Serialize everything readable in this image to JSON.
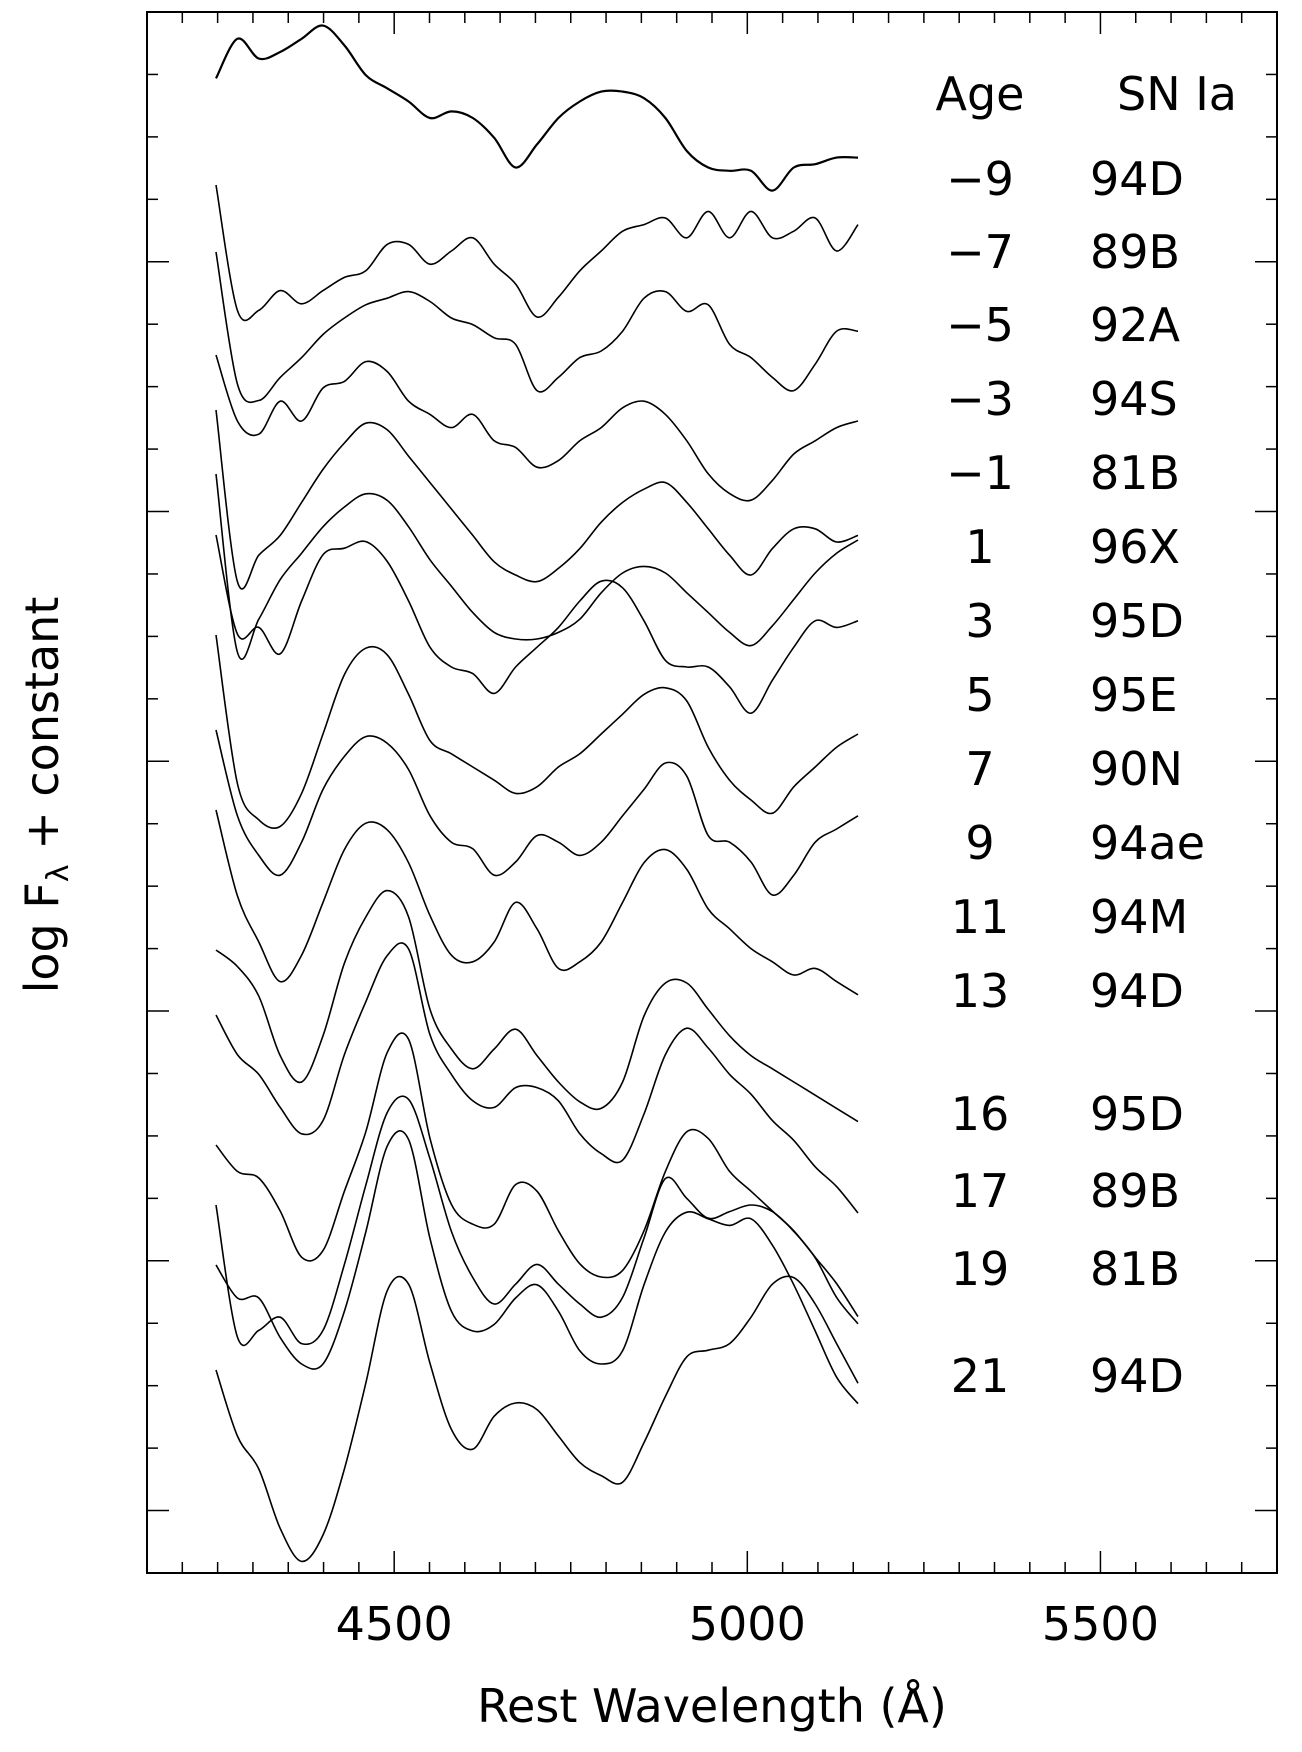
{
  "chart_data": {
    "type": "line",
    "xlabel": "Rest Wavelength  (Å)",
    "ylabel": "log F",
    "ylabel_subscript": "λ",
    "ylabel_suffix": " + constant",
    "xlim": [
      4150,
      5750
    ],
    "x_ticks": [
      4500,
      5000,
      5500
    ],
    "x_ticks_labels": [
      "4500",
      "5000",
      "5500"
    ],
    "x_minor_step": 50,
    "table_headers": {
      "age": "Age",
      "sn": "SN Ia"
    },
    "x_nodes": [
      4150,
      4200,
      4250,
      4300,
      4350,
      4400,
      4450,
      4500,
      4550,
      4600,
      4650,
      4700,
      4750,
      4800,
      4850,
      4900,
      4950,
      5000,
      5050,
      5100,
      5150,
      5200,
      5250,
      5300,
      5350,
      5400,
      5450,
      5500,
      5550,
      5600,
      5650
    ],
    "series": [
      {
        "age": "−9",
        "sn": "94D",
        "values": [
          0.02,
          0.14,
          0.08,
          0.1,
          0.14,
          0.18,
          0.12,
          0.03,
          -0.01,
          -0.05,
          -0.1,
          -0.08,
          -0.1,
          -0.16,
          -0.25,
          -0.18,
          -0.1,
          -0.05,
          -0.02,
          -0.02,
          -0.04,
          -0.1,
          -0.2,
          -0.25,
          -0.26,
          -0.26,
          -0.32,
          -0.25,
          -0.24,
          -0.22,
          -0.22
        ]
      },
      {
        "age": "−7",
        "sn": "89B",
        "values": [
          0.0,
          -0.38,
          -0.38,
          -0.32,
          -0.36,
          -0.32,
          -0.28,
          -0.26,
          -0.18,
          -0.18,
          -0.24,
          -0.2,
          -0.16,
          -0.24,
          -0.3,
          -0.4,
          -0.34,
          -0.26,
          -0.2,
          -0.14,
          -0.12,
          -0.1,
          -0.16,
          -0.08,
          -0.16,
          -0.08,
          -0.16,
          -0.14,
          -0.1,
          -0.2,
          -0.12
        ]
      },
      {
        "age": "−5",
        "sn": "92A",
        "values": [
          0.0,
          -0.4,
          -0.45,
          -0.38,
          -0.32,
          -0.25,
          -0.2,
          -0.16,
          -0.14,
          -0.12,
          -0.15,
          -0.2,
          -0.22,
          -0.26,
          -0.28,
          -0.42,
          -0.38,
          -0.32,
          -0.3,
          -0.24,
          -0.14,
          -0.12,
          -0.18,
          -0.16,
          -0.28,
          -0.32,
          -0.38,
          -0.42,
          -0.34,
          -0.24,
          -0.24
        ]
      },
      {
        "age": "−3",
        "sn": "94S",
        "values": [
          0.0,
          -0.2,
          -0.24,
          -0.14,
          -0.2,
          -0.1,
          -0.08,
          -0.02,
          -0.05,
          -0.14,
          -0.18,
          -0.22,
          -0.18,
          -0.26,
          -0.28,
          -0.34,
          -0.32,
          -0.26,
          -0.22,
          -0.16,
          -0.14,
          -0.18,
          -0.26,
          -0.36,
          -0.42,
          -0.44,
          -0.38,
          -0.3,
          -0.26,
          -0.22,
          -0.2
        ]
      },
      {
        "age": "−1",
        "sn": "81B",
        "values": [
          0.0,
          -0.52,
          -0.44,
          -0.38,
          -0.28,
          -0.18,
          -0.1,
          -0.04,
          -0.06,
          -0.14,
          -0.22,
          -0.3,
          -0.38,
          -0.46,
          -0.5,
          -0.52,
          -0.48,
          -0.42,
          -0.34,
          -0.28,
          -0.24,
          -0.22,
          -0.28,
          -0.36,
          -0.44,
          -0.5,
          -0.42,
          -0.36,
          -0.36,
          -0.4,
          -0.38
        ]
      },
      {
        "age": "1",
        "sn": "96X",
        "values": [
          0.0,
          -0.3,
          -0.28,
          -0.36,
          -0.2,
          -0.06,
          -0.04,
          -0.02,
          -0.08,
          -0.2,
          -0.34,
          -0.4,
          -0.42,
          -0.48,
          -0.4,
          -0.34,
          -0.28,
          -0.2,
          -0.14,
          -0.16,
          -0.26,
          -0.38,
          -0.4,
          -0.4,
          -0.46,
          -0.54,
          -0.44,
          -0.34,
          -0.26,
          -0.28,
          -0.26
        ]
      },
      {
        "age": "3",
        "sn": "95D",
        "values": [
          0.0,
          -0.54,
          -0.44,
          -0.32,
          -0.24,
          -0.16,
          -0.1,
          -0.06,
          -0.08,
          -0.16,
          -0.26,
          -0.34,
          -0.42,
          -0.48,
          -0.5,
          -0.5,
          -0.48,
          -0.44,
          -0.36,
          -0.3,
          -0.28,
          -0.3,
          -0.36,
          -0.42,
          -0.48,
          -0.52,
          -0.46,
          -0.38,
          -0.3,
          -0.24,
          -0.2
        ]
      },
      {
        "age": "5",
        "sn": "95E",
        "values": [
          0.0,
          -0.45,
          -0.56,
          -0.58,
          -0.48,
          -0.3,
          -0.12,
          -0.04,
          -0.06,
          -0.18,
          -0.32,
          -0.36,
          -0.4,
          -0.44,
          -0.48,
          -0.46,
          -0.4,
          -0.36,
          -0.3,
          -0.24,
          -0.18,
          -0.16,
          -0.2,
          -0.34,
          -0.44,
          -0.5,
          -0.54,
          -0.46,
          -0.4,
          -0.34,
          -0.3
        ]
      },
      {
        "age": "7",
        "sn": "90N",
        "values": [
          0.0,
          -0.26,
          -0.38,
          -0.44,
          -0.34,
          -0.18,
          -0.08,
          -0.02,
          -0.04,
          -0.12,
          -0.26,
          -0.34,
          -0.36,
          -0.44,
          -0.4,
          -0.32,
          -0.34,
          -0.38,
          -0.34,
          -0.26,
          -0.18,
          -0.1,
          -0.14,
          -0.32,
          -0.34,
          -0.4,
          -0.5,
          -0.44,
          -0.34,
          -0.3,
          -0.26
        ]
      },
      {
        "age": "9",
        "sn": "94ae",
        "values": [
          0.0,
          -0.26,
          -0.4,
          -0.52,
          -0.44,
          -0.28,
          -0.12,
          -0.04,
          -0.06,
          -0.16,
          -0.32,
          -0.44,
          -0.46,
          -0.4,
          -0.28,
          -0.36,
          -0.48,
          -0.46,
          -0.4,
          -0.28,
          -0.16,
          -0.12,
          -0.18,
          -0.3,
          -0.36,
          -0.42,
          -0.46,
          -0.5,
          -0.48,
          -0.52,
          -0.56
        ]
      },
      {
        "age": "11",
        "sn": "94M",
        "values": [
          0.0,
          -0.05,
          -0.14,
          -0.32,
          -0.4,
          -0.26,
          -0.04,
          0.1,
          0.18,
          0.1,
          -0.18,
          -0.3,
          -0.36,
          -0.3,
          -0.24,
          -0.32,
          -0.4,
          -0.46,
          -0.48,
          -0.4,
          -0.2,
          -0.1,
          -0.1,
          -0.18,
          -0.26,
          -0.32,
          -0.36,
          -0.4,
          -0.44,
          -0.48,
          -0.52
        ]
      },
      {
        "age": "13",
        "sn": "94D",
        "values": [
          0.0,
          -0.12,
          -0.18,
          -0.28,
          -0.36,
          -0.32,
          -0.12,
          0.04,
          0.18,
          0.2,
          -0.06,
          -0.18,
          -0.26,
          -0.28,
          -0.22,
          -0.22,
          -0.26,
          -0.36,
          -0.42,
          -0.44,
          -0.3,
          -0.12,
          -0.04,
          -0.1,
          -0.18,
          -0.24,
          -0.32,
          -0.38,
          -0.46,
          -0.52,
          -0.6
        ]
      },
      {
        "age": "16",
        "sn": "95D",
        "values": [
          0.0,
          -0.08,
          -0.1,
          -0.2,
          -0.34,
          -0.32,
          -0.14,
          0.04,
          0.28,
          0.32,
          0.02,
          -0.18,
          -0.24,
          -0.24,
          -0.12,
          -0.14,
          -0.26,
          -0.36,
          -0.4,
          -0.38,
          -0.26,
          -0.08,
          0.04,
          0.02,
          -0.08,
          -0.14,
          -0.2,
          -0.26,
          -0.34,
          -0.42,
          -0.52
        ]
      },
      {
        "age": "17",
        "sn": "89B",
        "values": [
          0.0,
          -0.4,
          -0.38,
          -0.34,
          -0.42,
          -0.38,
          -0.18,
          0.06,
          0.28,
          0.32,
          0.14,
          -0.08,
          -0.22,
          -0.3,
          -0.24,
          -0.18,
          -0.24,
          -0.3,
          -0.34,
          -0.28,
          -0.1,
          0.08,
          0.02,
          -0.04,
          -0.02,
          0.0,
          -0.02,
          -0.08,
          -0.16,
          -0.28,
          -0.36
        ]
      },
      {
        "age": "19",
        "sn": "81B",
        "values": [
          0.0,
          -0.1,
          -0.1,
          -0.22,
          -0.3,
          -0.3,
          -0.14,
          0.1,
          0.36,
          0.38,
          0.08,
          -0.14,
          -0.2,
          -0.18,
          -0.1,
          -0.06,
          -0.14,
          -0.26,
          -0.3,
          -0.26,
          -0.06,
          0.1,
          0.16,
          0.14,
          0.12,
          0.14,
          0.06,
          -0.06,
          -0.2,
          -0.34,
          -0.42
        ]
      },
      {
        "age": "21",
        "sn": "94D",
        "values": [
          0.0,
          -0.2,
          -0.3,
          -0.48,
          -0.58,
          -0.5,
          -0.3,
          -0.04,
          0.24,
          0.26,
          0.02,
          -0.18,
          -0.24,
          -0.14,
          -0.1,
          -0.12,
          -0.2,
          -0.28,
          -0.32,
          -0.34,
          -0.22,
          -0.08,
          0.04,
          0.06,
          0.08,
          0.16,
          0.26,
          0.28,
          0.2,
          0.08,
          -0.04
        ]
      }
    ]
  }
}
